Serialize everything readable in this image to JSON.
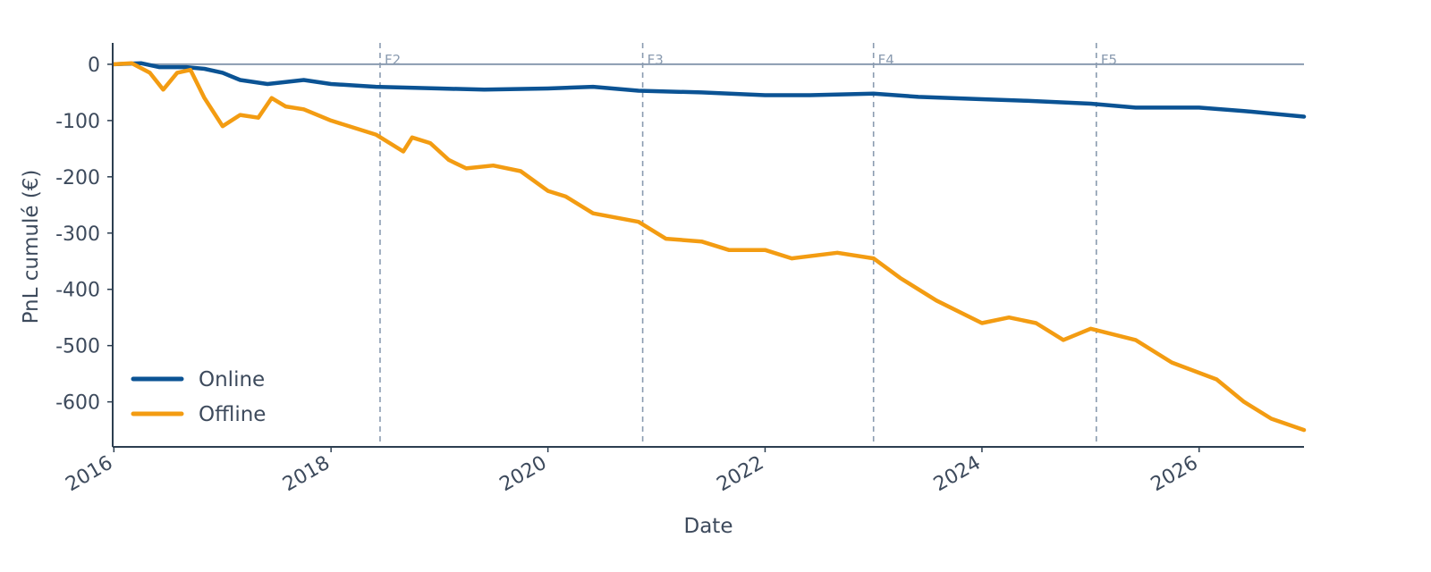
{
  "chart_data": {
    "type": "line",
    "xlabel": "Date",
    "ylabel": "PnL cumulé (€)",
    "xlim": [
      "2015-12-28",
      "2026-12-20"
    ],
    "ylim": [
      -680,
      38
    ],
    "x_ticks": [
      "2016",
      "2018",
      "2020",
      "2022",
      "2024",
      "2026"
    ],
    "y_ticks": [
      0,
      -100,
      -200,
      -300,
      -400,
      -500,
      -600
    ],
    "reference_line_y": 0,
    "legend_position": "bottom-left",
    "grid": false,
    "fold_markers": [
      {
        "label": "F2",
        "date": "2018-06-15"
      },
      {
        "label": "F3",
        "date": "2020-11-15"
      },
      {
        "label": "F4",
        "date": "2023-01-01"
      },
      {
        "label": "F5",
        "date": "2025-01-20"
      }
    ],
    "series": [
      {
        "name": "Online",
        "color": "#0b5394",
        "points": [
          [
            "2016-01-01",
            0
          ],
          [
            "2016-04-01",
            2
          ],
          [
            "2016-06-01",
            -5
          ],
          [
            "2016-09-01",
            -5
          ],
          [
            "2016-11-01",
            -8
          ],
          [
            "2017-01-01",
            -15
          ],
          [
            "2017-03-01",
            -28
          ],
          [
            "2017-06-01",
            -35
          ],
          [
            "2017-10-01",
            -28
          ],
          [
            "2018-01-01",
            -35
          ],
          [
            "2018-06-01",
            -40
          ],
          [
            "2019-01-01",
            -43
          ],
          [
            "2019-06-01",
            -45
          ],
          [
            "2020-01-01",
            -43
          ],
          [
            "2020-06-01",
            -40
          ],
          [
            "2020-11-01",
            -47
          ],
          [
            "2021-06-01",
            -50
          ],
          [
            "2022-01-01",
            -55
          ],
          [
            "2022-06-01",
            -55
          ],
          [
            "2023-01-01",
            -52
          ],
          [
            "2023-06-01",
            -58
          ],
          [
            "2024-01-01",
            -62
          ],
          [
            "2024-06-01",
            -65
          ],
          [
            "2025-01-01",
            -70
          ],
          [
            "2025-06-01",
            -77
          ],
          [
            "2026-01-01",
            -77
          ],
          [
            "2026-06-01",
            -83
          ],
          [
            "2026-12-20",
            -93
          ]
        ]
      },
      {
        "name": "Offline",
        "color": "#f39c12",
        "points": [
          [
            "2016-01-01",
            0
          ],
          [
            "2016-03-01",
            2
          ],
          [
            "2016-05-01",
            -15
          ],
          [
            "2016-06-15",
            -45
          ],
          [
            "2016-08-01",
            -15
          ],
          [
            "2016-09-15",
            -10
          ],
          [
            "2016-11-01",
            -60
          ],
          [
            "2017-01-01",
            -110
          ],
          [
            "2017-03-01",
            -90
          ],
          [
            "2017-05-01",
            -95
          ],
          [
            "2017-06-15",
            -60
          ],
          [
            "2017-08-01",
            -75
          ],
          [
            "2017-10-01",
            -80
          ],
          [
            "2018-01-01",
            -100
          ],
          [
            "2018-06-01",
            -125
          ],
          [
            "2018-09-01",
            -155
          ],
          [
            "2018-10-01",
            -130
          ],
          [
            "2018-12-01",
            -140
          ],
          [
            "2019-02-01",
            -170
          ],
          [
            "2019-04-01",
            -185
          ],
          [
            "2019-07-01",
            -180
          ],
          [
            "2019-10-01",
            -190
          ],
          [
            "2020-01-01",
            -225
          ],
          [
            "2020-03-01",
            -235
          ],
          [
            "2020-06-01",
            -265
          ],
          [
            "2020-11-01",
            -280
          ],
          [
            "2021-02-01",
            -310
          ],
          [
            "2021-06-01",
            -315
          ],
          [
            "2021-09-01",
            -330
          ],
          [
            "2022-01-01",
            -330
          ],
          [
            "2022-04-01",
            -345
          ],
          [
            "2022-09-01",
            -335
          ],
          [
            "2023-01-01",
            -345
          ],
          [
            "2023-04-01",
            -380
          ],
          [
            "2023-08-01",
            -420
          ],
          [
            "2024-01-01",
            -460
          ],
          [
            "2024-04-01",
            -450
          ],
          [
            "2024-07-01",
            -460
          ],
          [
            "2024-10-01",
            -490
          ],
          [
            "2025-01-01",
            -470
          ],
          [
            "2025-06-01",
            -490
          ],
          [
            "2025-10-01",
            -530
          ],
          [
            "2026-03-01",
            -560
          ],
          [
            "2026-06-01",
            -600
          ],
          [
            "2026-09-01",
            -630
          ],
          [
            "2026-12-20",
            -650
          ]
        ]
      }
    ]
  }
}
